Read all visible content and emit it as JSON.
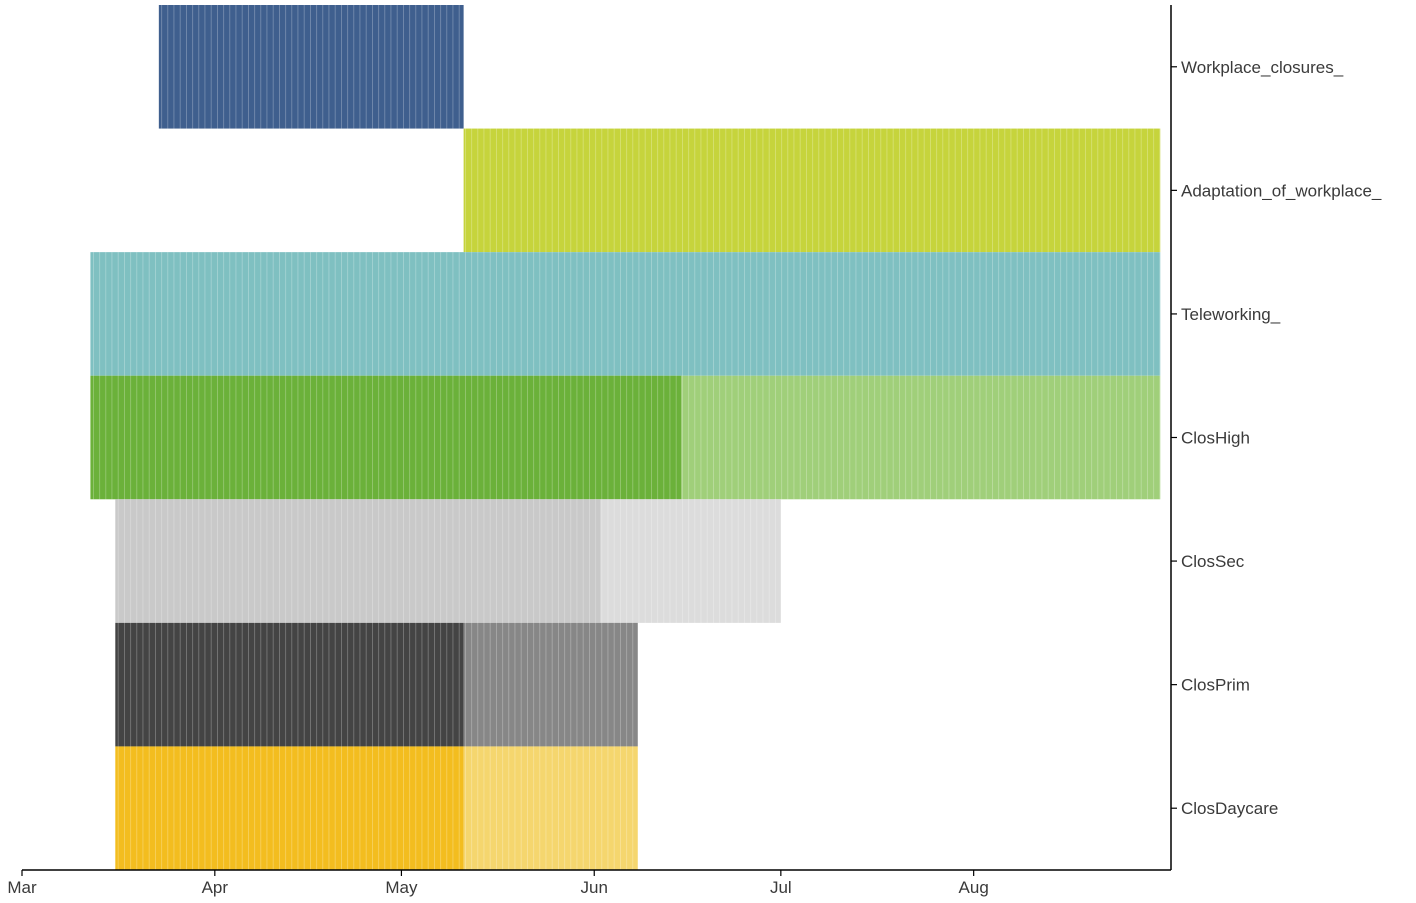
{
  "chart_data": {
    "type": "bar",
    "subtype": "timeline-range",
    "x_axis": {
      "kind": "date",
      "range": [
        "2020-03-01",
        "2020-08-31"
      ],
      "ticks": [
        {
          "date": "2020-03-01",
          "label": "Mar"
        },
        {
          "date": "2020-04-01",
          "label": "Apr"
        },
        {
          "date": "2020-05-01",
          "label": "May"
        },
        {
          "date": "2020-06-01",
          "label": "Jun"
        },
        {
          "date": "2020-07-01",
          "label": "Jul"
        },
        {
          "date": "2020-08-01",
          "label": "Aug"
        }
      ]
    },
    "y_axis_position": "right",
    "grid": false,
    "legend": "none",
    "categories": [
      "Workplace_closures_",
      "Adaptation_of_workplace_",
      "Teleworking_",
      "ClosHigh",
      "ClosSec",
      "ClosPrim",
      "ClosDaycare"
    ],
    "series": [
      {
        "category": "Workplace_closures_",
        "segments": [
          {
            "start": "2020-03-23",
            "end": "2020-05-11",
            "color": "#3f5f8e"
          }
        ]
      },
      {
        "category": "Adaptation_of_workplace_",
        "segments": [
          {
            "start": "2020-05-11",
            "end": "2020-08-31",
            "color": "#c6d43c"
          }
        ]
      },
      {
        "category": "Teleworking_",
        "segments": [
          {
            "start": "2020-03-12",
            "end": "2020-08-31",
            "color": "#7fc0c1"
          }
        ]
      },
      {
        "category": "ClosHigh",
        "segments": [
          {
            "start": "2020-03-12",
            "end": "2020-06-15",
            "color": "#6bb13a"
          },
          {
            "start": "2020-06-15",
            "end": "2020-08-31",
            "color": "#a0cf7a"
          }
        ]
      },
      {
        "category": "ClosSec",
        "segments": [
          {
            "start": "2020-03-16",
            "end": "2020-06-02",
            "color": "#c9c9c9"
          },
          {
            "start": "2020-06-02",
            "end": "2020-07-01",
            "color": "#dcdcdc"
          }
        ]
      },
      {
        "category": "ClosPrim",
        "segments": [
          {
            "start": "2020-03-16",
            "end": "2020-05-11",
            "color": "#444444"
          },
          {
            "start": "2020-05-11",
            "end": "2020-06-08",
            "color": "#878787"
          }
        ]
      },
      {
        "category": "ClosDaycare",
        "segments": [
          {
            "start": "2020-03-16",
            "end": "2020-05-11",
            "color": "#f3bd1f"
          },
          {
            "start": "2020-05-11",
            "end": "2020-06-08",
            "color": "#f5d66e"
          }
        ]
      }
    ]
  }
}
